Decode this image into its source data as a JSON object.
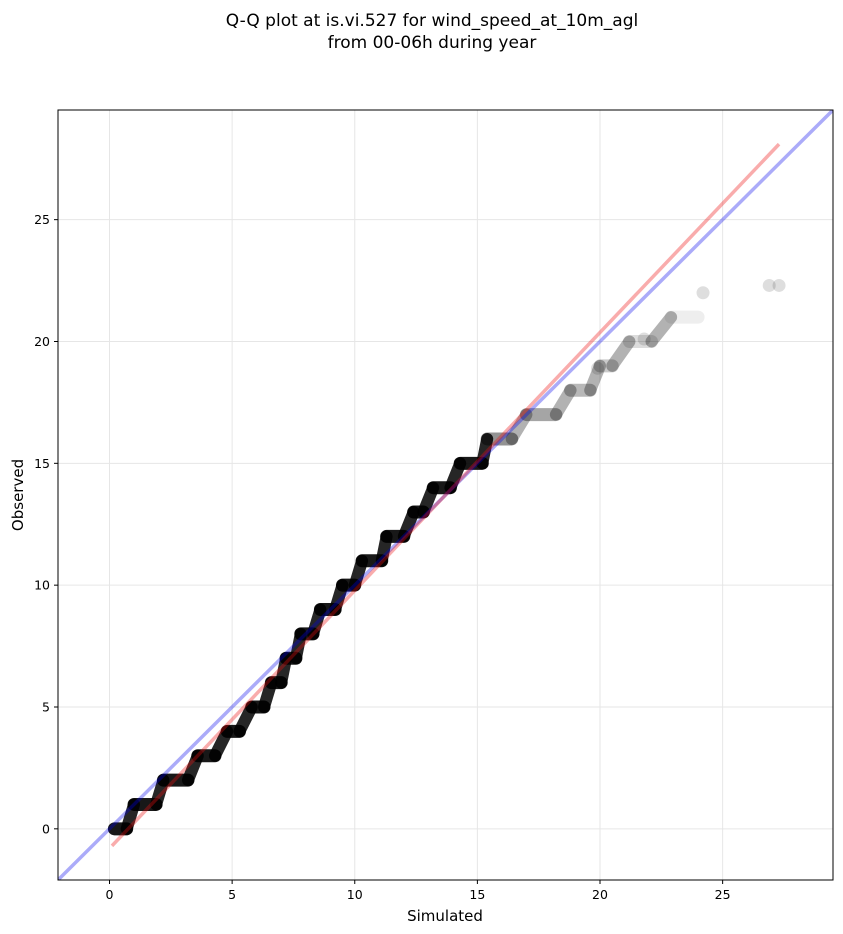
{
  "chart_data": {
    "type": "scatter",
    "title_lines": [
      "Q-Q plot at is.vi.527 for wind_speed_at_10m_agl",
      "from 00-06h during year"
    ],
    "xlabel": "Simulated",
    "ylabel": "Observed",
    "xlim": [
      -2.1,
      29.5
    ],
    "ylim": [
      -2.1,
      29.5
    ],
    "xticks": [
      0,
      5,
      10,
      15,
      20,
      25
    ],
    "yticks": [
      0,
      5,
      10,
      15,
      20,
      25
    ],
    "grid": true,
    "colors": {
      "points": "#000000",
      "identity_line": "#0000ee",
      "fit_line": "#ee1111"
    },
    "identity_line": {
      "x": [
        -2.1,
        29.5
      ],
      "y": [
        -2.1,
        29.5
      ]
    },
    "fit_line": {
      "x": [
        0.1,
        27.3
      ],
      "y": [
        -0.7,
        28.1
      ]
    },
    "steps": [
      {
        "y": 0,
        "x": [
          0.2,
          0.7
        ]
      },
      {
        "y": 1,
        "x": [
          1.0,
          1.9
        ]
      },
      {
        "y": 2,
        "x": [
          2.2,
          3.2
        ]
      },
      {
        "y": 3,
        "x": [
          3.6,
          4.3
        ]
      },
      {
        "y": 4,
        "x": [
          4.8,
          5.3
        ]
      },
      {
        "y": 5,
        "x": [
          5.8,
          6.3
        ]
      },
      {
        "y": 6,
        "x": [
          6.6,
          7.0
        ]
      },
      {
        "y": 7,
        "x": [
          7.2,
          7.6
        ]
      },
      {
        "y": 8,
        "x": [
          7.8,
          8.3
        ]
      },
      {
        "y": 9,
        "x": [
          8.6,
          9.2
        ]
      },
      {
        "y": 10,
        "x": [
          9.5,
          10.0
        ]
      },
      {
        "y": 11,
        "x": [
          10.3,
          11.1
        ]
      },
      {
        "y": 12,
        "x": [
          11.3,
          12.0
        ]
      },
      {
        "y": 13,
        "x": [
          12.4,
          12.8
        ]
      },
      {
        "y": 14,
        "x": [
          13.2,
          13.9
        ]
      },
      {
        "y": 15,
        "x": [
          14.3,
          15.2
        ]
      },
      {
        "y": 16,
        "x": [
          15.4,
          16.4
        ]
      },
      {
        "y": 17,
        "x": [
          17.0,
          18.2
        ]
      },
      {
        "y": 18,
        "x": [
          18.8,
          19.6
        ]
      },
      {
        "y": 19,
        "x": [
          20.0,
          20.5
        ]
      },
      {
        "y": 20,
        "x": [
          21.2,
          22.1
        ]
      },
      {
        "y": 21,
        "x": [
          22.9,
          24.0
        ]
      }
    ],
    "outliers": [
      {
        "x": 24.2,
        "y": 22.0
      },
      {
        "x": 26.9,
        "y": 22.3
      },
      {
        "x": 27.3,
        "y": 22.3
      },
      {
        "x": 19.9,
        "y": 18.9
      },
      {
        "x": 21.8,
        "y": 20.1
      }
    ]
  }
}
